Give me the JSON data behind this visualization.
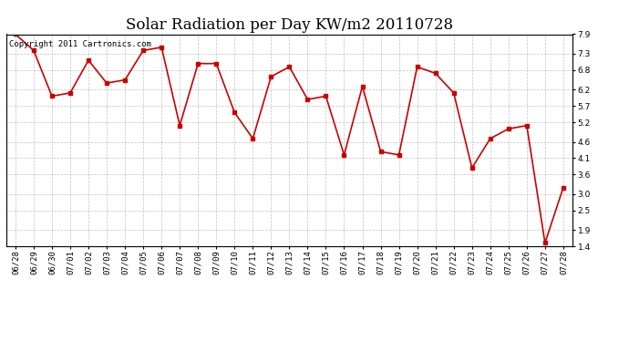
{
  "title": "Solar Radiation per Day KW/m2 20110728",
  "copyright": "Copyright 2011 Cartronics.com",
  "dates": [
    "06/28",
    "06/29",
    "06/30",
    "07/01",
    "07/02",
    "07/03",
    "07/04",
    "07/05",
    "07/06",
    "07/07",
    "07/08",
    "07/09",
    "07/10",
    "07/11",
    "07/12",
    "07/13",
    "07/14",
    "07/15",
    "07/16",
    "07/17",
    "07/18",
    "07/19",
    "07/20",
    "07/21",
    "07/22",
    "07/23",
    "07/24",
    "07/25",
    "07/26",
    "07/27",
    "07/28"
  ],
  "values": [
    7.9,
    7.4,
    6.0,
    6.1,
    7.1,
    6.4,
    6.5,
    7.4,
    7.5,
    5.1,
    7.0,
    7.0,
    5.5,
    4.7,
    6.6,
    6.9,
    5.9,
    6.0,
    4.2,
    6.3,
    4.3,
    4.2,
    6.9,
    6.7,
    6.1,
    3.8,
    4.7,
    5.0,
    5.1,
    1.5,
    3.2
  ],
  "line_color": "#cc0000",
  "marker_color": "#cc0000",
  "bg_color": "#ffffff",
  "grid_color": "#999999",
  "ylim_min": 1.4,
  "ylim_max": 7.9,
  "yticks": [
    1.4,
    1.9,
    2.5,
    3.0,
    3.6,
    4.1,
    4.6,
    5.2,
    5.7,
    6.2,
    6.8,
    7.3,
    7.9
  ],
  "title_fontsize": 12,
  "tick_fontsize": 6.5,
  "copyright_fontsize": 6.5,
  "fig_width": 6.9,
  "fig_height": 3.75,
  "dpi": 100
}
